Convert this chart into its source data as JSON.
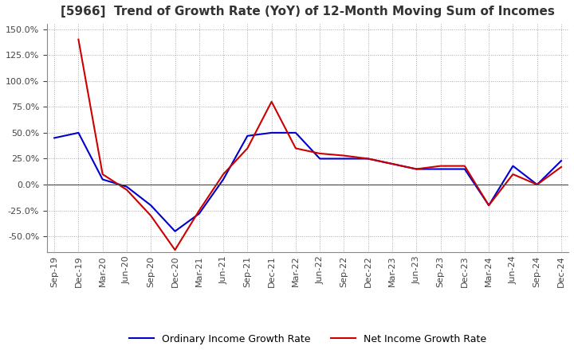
{
  "title": "[5966]  Trend of Growth Rate (YoY) of 12-Month Moving Sum of Incomes",
  "title_fontsize": 11,
  "ylim": [
    -65,
    155
  ],
  "yticks": [
    -50,
    -25,
    0,
    25,
    50,
    75,
    100,
    125,
    150
  ],
  "legend_labels": [
    "Ordinary Income Growth Rate",
    "Net Income Growth Rate"
  ],
  "line_colors": [
    "#0000cc",
    "#cc0000"
  ],
  "grid_color": "#aaaaaa",
  "background_color": "#ffffff",
  "x_labels": [
    "Sep-19",
    "Dec-19",
    "Mar-20",
    "Jun-20",
    "Sep-20",
    "Dec-20",
    "Mar-21",
    "Jun-21",
    "Sep-21",
    "Dec-21",
    "Mar-22",
    "Jun-22",
    "Sep-22",
    "Dec-22",
    "Mar-23",
    "Jun-23",
    "Sep-23",
    "Dec-23",
    "Mar-24",
    "Jun-24",
    "Sep-24",
    "Dec-24"
  ],
  "ordinary_income": [
    45,
    50,
    5,
    -2,
    -20,
    -45,
    -28,
    5,
    47,
    50,
    50,
    25,
    25,
    25,
    20,
    15,
    15,
    15,
    -20,
    18,
    0,
    23
  ],
  "net_income": [
    null,
    140,
    10,
    -5,
    -30,
    -63,
    -25,
    10,
    35,
    80,
    35,
    30,
    28,
    25,
    20,
    15,
    18,
    18,
    -20,
    10,
    0,
    17
  ]
}
